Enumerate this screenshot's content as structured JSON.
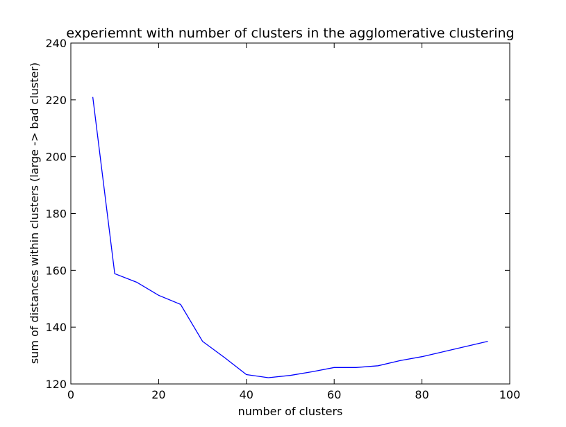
{
  "chart_data": {
    "type": "line",
    "title": "experiemnt with number of clusters in the agglomerative clustering",
    "xlabel": "number of clusters",
    "ylabel": "sum of distances within clusters (large -> bad cluster)",
    "xlim": [
      0,
      100
    ],
    "ylim": [
      120,
      240
    ],
    "xticks": [
      0,
      20,
      40,
      60,
      80,
      100
    ],
    "yticks": [
      120,
      140,
      160,
      180,
      200,
      220,
      240
    ],
    "grid": false,
    "series": [
      {
        "color": "#0000ff",
        "x": [
          5,
          10,
          15,
          20,
          25,
          30,
          35,
          40,
          45,
          50,
          55,
          60,
          65,
          70,
          75,
          80,
          85,
          90,
          95
        ],
        "y": [
          221,
          158.8,
          155.8,
          151.2,
          148,
          135,
          129.3,
          123.3,
          122.2,
          123,
          124.3,
          125.8,
          125.8,
          126.4,
          128.2,
          129.6,
          131.4,
          133.2,
          135
        ]
      }
    ]
  }
}
